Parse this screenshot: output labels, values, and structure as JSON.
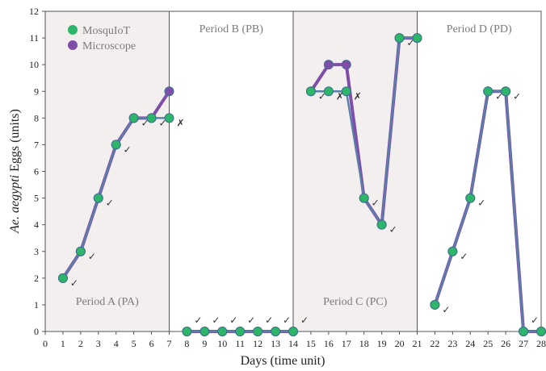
{
  "chart_data": {
    "type": "line",
    "xlabel": "Days (time unit)",
    "ylabel_italic": "Ae. aegypti",
    "ylabel_rest": " Eggs (units)",
    "xlim": [
      0,
      28
    ],
    "ylim": [
      0,
      12
    ],
    "x_ticks": [
      0,
      1,
      2,
      3,
      4,
      5,
      6,
      7,
      8,
      9,
      10,
      11,
      12,
      13,
      14,
      15,
      16,
      17,
      18,
      19,
      20,
      21,
      22,
      23,
      24,
      25,
      26,
      27,
      28
    ],
    "y_ticks": [
      0,
      1,
      2,
      3,
      4,
      5,
      6,
      7,
      8,
      9,
      10,
      11,
      12
    ],
    "grid": false,
    "legend": {
      "placement": "top-left",
      "entries": [
        {
          "name": "MosquIoT",
          "color": "#2db56a"
        },
        {
          "name": "Microscope",
          "color": "#7d4fa8"
        }
      ]
    },
    "periods": [
      {
        "label": "Period A (PA)",
        "start": 0,
        "end": 7,
        "shaded": true
      },
      {
        "label": "Period B (PB)",
        "start": 7,
        "end": 14,
        "shaded": false
      },
      {
        "label": "Period C (PC)",
        "start": 14,
        "end": 21,
        "shaded": true
      },
      {
        "label": "Period D (PD)",
        "start": 21,
        "end": 28,
        "shaded": false
      }
    ],
    "series": [
      {
        "name": "Microscope",
        "color": "#7d4fa8",
        "segments": [
          {
            "x": [
              1,
              2,
              3,
              4,
              5,
              6,
              7
            ],
            "y": [
              2,
              3,
              5,
              7,
              8,
              8,
              9
            ]
          },
          {
            "x": [
              8,
              9,
              10,
              11,
              12,
              13,
              14
            ],
            "y": [
              0,
              0,
              0,
              0,
              0,
              0,
              0
            ]
          },
          {
            "x": [
              15,
              16,
              17,
              18,
              19,
              20,
              21
            ],
            "y": [
              9,
              10,
              10,
              5,
              4,
              11,
              11
            ]
          },
          {
            "x": [
              22,
              23,
              24,
              25,
              26,
              27,
              28
            ],
            "y": [
              1,
              3,
              5,
              9,
              9,
              0,
              0
            ]
          }
        ]
      },
      {
        "name": "MosquIoT",
        "color": "#2db56a",
        "segments": [
          {
            "x": [
              1,
              2,
              3,
              4,
              5,
              6,
              7
            ],
            "y": [
              2,
              3,
              5,
              7,
              8,
              8,
              8
            ]
          },
          {
            "x": [
              8,
              9,
              10,
              11,
              12,
              13,
              14
            ],
            "y": [
              0,
              0,
              0,
              0,
              0,
              0,
              0
            ]
          },
          {
            "x": [
              15,
              16,
              17,
              18,
              19,
              20,
              21
            ],
            "y": [
              9,
              9,
              9,
              5,
              4,
              11,
              11
            ]
          },
          {
            "x": [
              22,
              23,
              24,
              25,
              26,
              27,
              28
            ],
            "y": [
              1,
              3,
              5,
              9,
              9,
              0,
              0
            ]
          }
        ]
      }
    ],
    "match_marks": [
      {
        "x": 1,
        "y": 2,
        "match": true
      },
      {
        "x": 2,
        "y": 3,
        "match": true
      },
      {
        "x": 3,
        "y": 5,
        "match": true
      },
      {
        "x": 4,
        "y": 7,
        "match": true
      },
      {
        "x": 5,
        "y": 8,
        "match": true
      },
      {
        "x": 6,
        "y": 8,
        "match": true
      },
      {
        "x": 7,
        "y": 8,
        "match": false
      },
      {
        "x": 8,
        "y": 0,
        "match": true
      },
      {
        "x": 9,
        "y": 0,
        "match": true
      },
      {
        "x": 10,
        "y": 0,
        "match": true
      },
      {
        "x": 11,
        "y": 0,
        "match": true
      },
      {
        "x": 12,
        "y": 0,
        "match": true
      },
      {
        "x": 13,
        "y": 0,
        "match": true
      },
      {
        "x": 14,
        "y": 0,
        "match": true
      },
      {
        "x": 15,
        "y": 9,
        "match": true
      },
      {
        "x": 16,
        "y": 9,
        "match": false
      },
      {
        "x": 17,
        "y": 9,
        "match": false
      },
      {
        "x": 18,
        "y": 5,
        "match": true
      },
      {
        "x": 19,
        "y": 4,
        "match": true
      },
      {
        "x": 20,
        "y": 11,
        "match": true
      },
      {
        "x": 22,
        "y": 1,
        "match": true
      },
      {
        "x": 23,
        "y": 3,
        "match": true
      },
      {
        "x": 24,
        "y": 5,
        "match": true
      },
      {
        "x": 25,
        "y": 9,
        "match": true
      },
      {
        "x": 26,
        "y": 9,
        "match": true
      },
      {
        "x": 27,
        "y": 0,
        "match": true
      },
      {
        "x": 28,
        "y": 0,
        "match": true
      }
    ],
    "mark_symbols": {
      "match": "✓",
      "mismatch": "✗"
    }
  }
}
